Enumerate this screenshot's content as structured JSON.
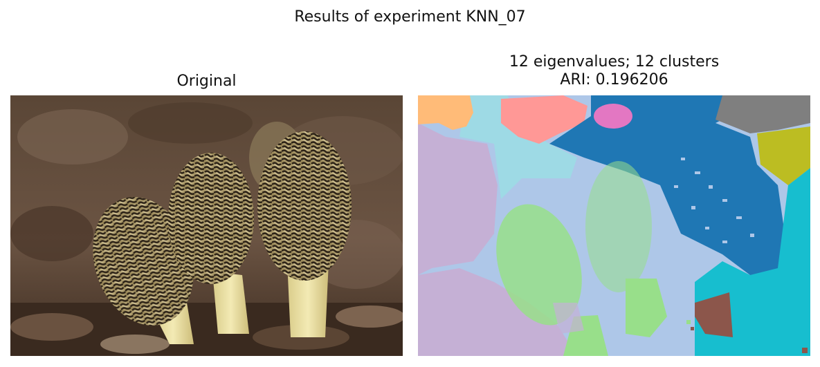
{
  "figure": {
    "suptitle": "Results of experiment KNN_07"
  },
  "left_panel": {
    "title": "Original",
    "image": "photo of three morel mushrooms"
  },
  "right_panel": {
    "title_line1": "12 eigenvalues; 12 clusters",
    "title_line2": "ARI: 0.196206",
    "image": "segmentation map",
    "cluster_colors": [
      "#ffbb78",
      "#9edae5",
      "#ff9896",
      "#1f77b4",
      "#e377c2",
      "#7f7f7f",
      "#bcbd22",
      "#c5b0d5",
      "#aec7e8",
      "#98df8a",
      "#17becf",
      "#8c564b"
    ]
  }
}
